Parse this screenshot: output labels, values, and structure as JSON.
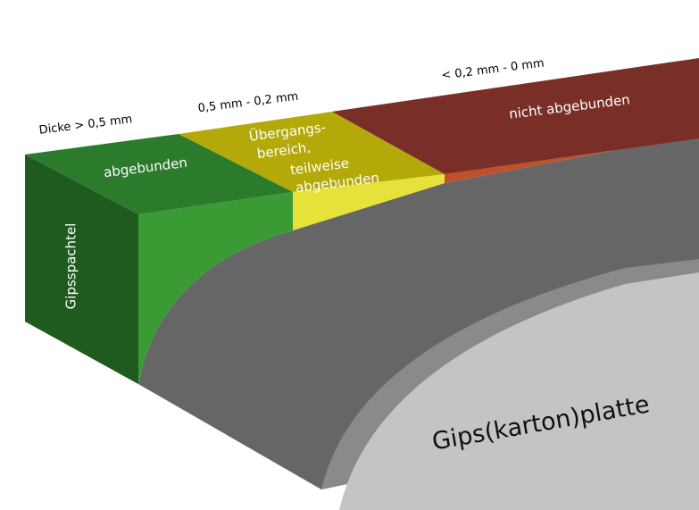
{
  "labels": {
    "thickness_1": "Dicke > 0,5 mm",
    "thickness_2": "0,5 mm - 0,2 mm",
    "thickness_3": "< 0,2 mm - 0 mm"
  },
  "zones": {
    "set": "abgebunden",
    "transition": [
      "Übergangs-",
      "bereich,",
      "teilweise",
      "abgebunden"
    ],
    "not_set": "nicht abgebunden"
  },
  "materials": {
    "filler": "Gipsspachtel",
    "board": "Gips(karton)platte"
  }
}
